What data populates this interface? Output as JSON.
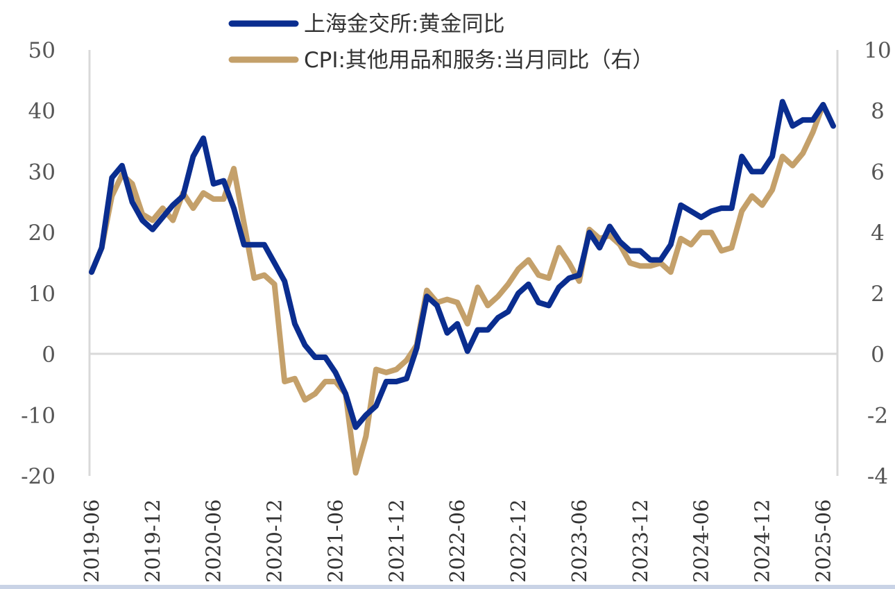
{
  "chart_data": {
    "type": "line",
    "title": "",
    "dual_axis": true,
    "left_axis": {
      "min": -20,
      "max": 50,
      "ticks": [
        "-20",
        "-10",
        "0",
        "10",
        "20",
        "30",
        "40",
        "50"
      ]
    },
    "right_axis": {
      "min": -4,
      "max": 10,
      "ticks": [
        "-4",
        "-2",
        "0",
        "2",
        "4",
        "6",
        "8",
        "10"
      ]
    },
    "x_start": "2019-06",
    "x_tick_labels": [
      "2019-06",
      "2019-12",
      "2020-06",
      "2020-12",
      "2021-06",
      "2021-12",
      "2022-06",
      "2022-12",
      "2023-06",
      "2023-12",
      "2024-06",
      "2024-12",
      "2025-06"
    ],
    "series": [
      {
        "name": "上海金交所:黄金同比",
        "axis": "left",
        "color": "#0a2d8f",
        "values": [
          13.5,
          17.5,
          29,
          31,
          25,
          22,
          20.5,
          22.5,
          24.5,
          26,
          32.5,
          35.5,
          28,
          28.5,
          24,
          18,
          18,
          18,
          15,
          12,
          5,
          1.5,
          -0.5,
          -0.5,
          -3,
          -6.5,
          -12,
          -10,
          -8.5,
          -4.5,
          -4.5,
          -4,
          1,
          9.5,
          8,
          3.5,
          5,
          0.5,
          4,
          4,
          6,
          7,
          10,
          11.5,
          8.5,
          8,
          11,
          12.5,
          13,
          20,
          17.5,
          21,
          18.5,
          17,
          17,
          15.5,
          15.5,
          18,
          24.5,
          23.5,
          22.5,
          23.5,
          24,
          24,
          32.5,
          30,
          30,
          32.5,
          41.5,
          37.5,
          38.5,
          38.5,
          41,
          37.5
        ]
      },
      {
        "name": "CPI:其他用品和服务:当月同比（右）",
        "axis": "right",
        "color": "#c4a06a",
        "values": [
          2.7,
          3.5,
          5.2,
          5.9,
          5.6,
          4.6,
          4.4,
          4.8,
          4.4,
          5.3,
          4.8,
          5.3,
          5.1,
          5.1,
          6.1,
          4.3,
          2.5,
          2.6,
          2.3,
          -0.9,
          -0.8,
          -1.5,
          -1.3,
          -0.9,
          -0.9,
          -1.3,
          -3.9,
          -2.7,
          -0.5,
          -0.6,
          -0.5,
          -0.2,
          0.3,
          2.1,
          1.7,
          1.8,
          1.7,
          1.0,
          2.2,
          1.6,
          1.9,
          2.3,
          2.8,
          3.1,
          2.6,
          2.5,
          3.5,
          3.0,
          2.4,
          4.1,
          3.8,
          3.9,
          3.6,
          3.0,
          2.9,
          2.9,
          3.0,
          2.7,
          3.8,
          3.6,
          4.0,
          4.0,
          3.4,
          3.5,
          4.7,
          5.2,
          4.9,
          5.4,
          6.5,
          6.2,
          6.6,
          7.3,
          8.2
        ]
      }
    ]
  }
}
